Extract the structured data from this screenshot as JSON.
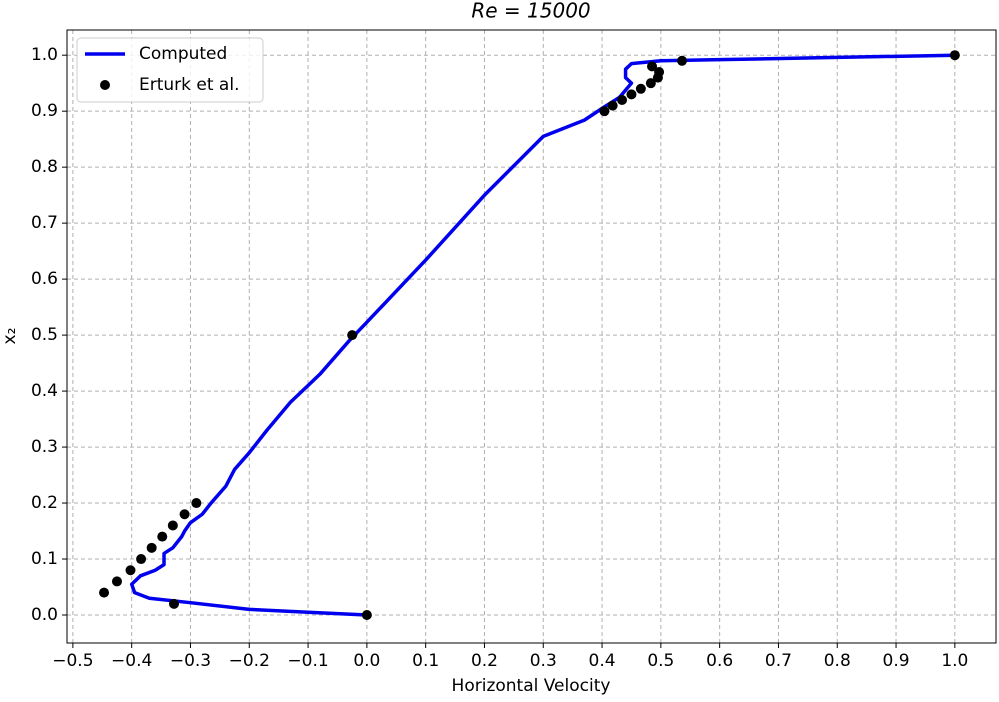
{
  "chart_data": {
    "type": "line",
    "title": "Re = 15000",
    "x_label": "Horizontal Velocity",
    "y_label": "x₂",
    "xlim": [
      -0.51,
      1.07
    ],
    "ylim": [
      -0.05,
      1.045
    ],
    "xticks": [
      {
        "value": -0.5,
        "label": "−0.5"
      },
      {
        "value": -0.4,
        "label": "−0.4"
      },
      {
        "value": -0.3,
        "label": "−0.3"
      },
      {
        "value": -0.2,
        "label": "−0.2"
      },
      {
        "value": -0.1,
        "label": "−0.1"
      },
      {
        "value": 0,
        "label": "0.0"
      },
      0.1,
      0.2,
      0.3,
      0.4,
      0.5,
      0.6,
      0.7,
      0.8,
      0.9,
      {
        "value": 1,
        "label": "1.0"
      }
    ],
    "yticks": [
      {
        "value": 0,
        "label": "0.0"
      },
      0.1,
      0.2,
      0.3,
      0.4,
      0.5,
      0.6,
      0.7,
      0.8,
      0.9,
      {
        "value": 1,
        "label": "1.0"
      }
    ],
    "grid": true,
    "legend": "upper-left",
    "series": [
      {
        "name": "Computed",
        "type": "line",
        "color": "#0000ee",
        "x": [
          0,
          -0.1,
          -0.2,
          -0.3,
          -0.37,
          -0.395,
          -0.4,
          -0.385,
          -0.36,
          -0.345,
          -0.345,
          -0.33,
          -0.315,
          -0.31,
          -0.3,
          -0.28,
          -0.265,
          -0.24,
          -0.225,
          -0.2,
          -0.17,
          -0.13,
          -0.08,
          -0.03,
          0,
          0.1,
          0.2,
          0.3,
          0.37,
          0.4,
          0.43,
          0.45,
          0.44,
          0.44,
          0.45,
          0.5,
          0.6,
          0.8,
          1
        ],
        "values": [
          0,
          0.005,
          0.01,
          0.022,
          0.03,
          0.04,
          0.055,
          0.07,
          0.08,
          0.09,
          0.11,
          0.12,
          0.14,
          0.15,
          0.165,
          0.18,
          0.2,
          0.23,
          0.26,
          0.29,
          0.33,
          0.38,
          0.43,
          0.49,
          0.523,
          0.634,
          0.75,
          0.855,
          0.884,
          0.905,
          0.925,
          0.95,
          0.96,
          0.975,
          0.985,
          0.99,
          0.992,
          0.996,
          1
        ]
      },
      {
        "name": "Erturk et al.",
        "type": "scatter",
        "color": "#000000",
        "x": [
          1,
          0.536,
          0.485,
          0.497,
          0.495,
          0.483,
          0.466,
          0.45,
          0.434,
          0.418,
          0.404,
          -0.025,
          -0.29,
          -0.31,
          -0.33,
          -0.348,
          -0.366,
          -0.384,
          -0.402,
          -0.425,
          -0.447,
          -0.328,
          0
        ],
        "values": [
          1,
          0.99,
          0.98,
          0.97,
          0.96,
          0.95,
          0.94,
          0.93,
          0.92,
          0.91,
          0.9,
          0.5,
          0.2,
          0.18,
          0.16,
          0.14,
          0.12,
          0.1,
          0.08,
          0.06,
          0.04,
          0.02,
          0
        ]
      }
    ]
  }
}
